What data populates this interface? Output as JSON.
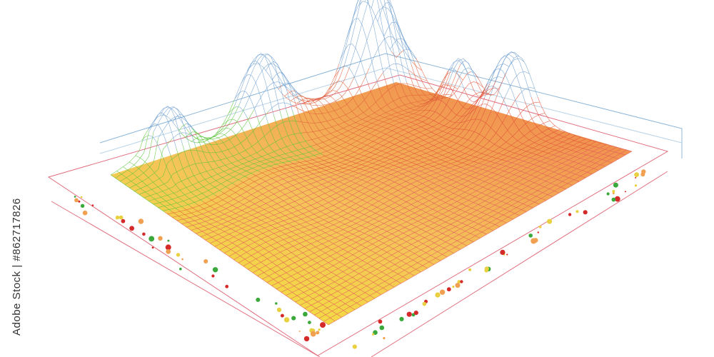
{
  "watermark": {
    "text": "Adobe Stock | #862717826"
  }
}
